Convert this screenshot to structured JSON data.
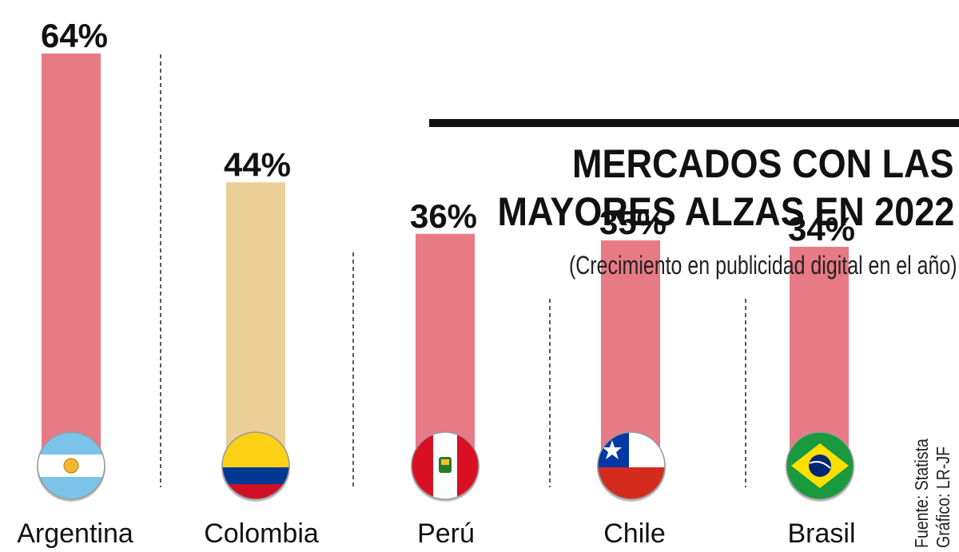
{
  "chart_data": {
    "type": "bar",
    "title_lines": [
      "MERCADOS CON LAS",
      "MAYORES ALZAS EN 2022"
    ],
    "subtitle": "(Crecimiento en publicidad digital en el año)",
    "categories": [
      "Argentina",
      "Colombia",
      "Perú",
      "Chile",
      "Brasil"
    ],
    "values": [
      64,
      44,
      36,
      35,
      34
    ],
    "value_labels": [
      "64%",
      "44%",
      "36%",
      "35%",
      "34%"
    ],
    "bar_colors": [
      "#e87a86",
      "#ead096",
      "#e87a86",
      "#e87a86",
      "#e87a86"
    ],
    "flags": [
      "argentina-flag",
      "colombia-flag",
      "peru-flag",
      "chile-flag",
      "brasil-flag"
    ],
    "ylim": [
      0,
      64
    ],
    "grid": false,
    "legend": "none"
  },
  "source": {
    "line1": "Fuente:  Statista",
    "line2": "Gráfico: LR-JF"
  }
}
